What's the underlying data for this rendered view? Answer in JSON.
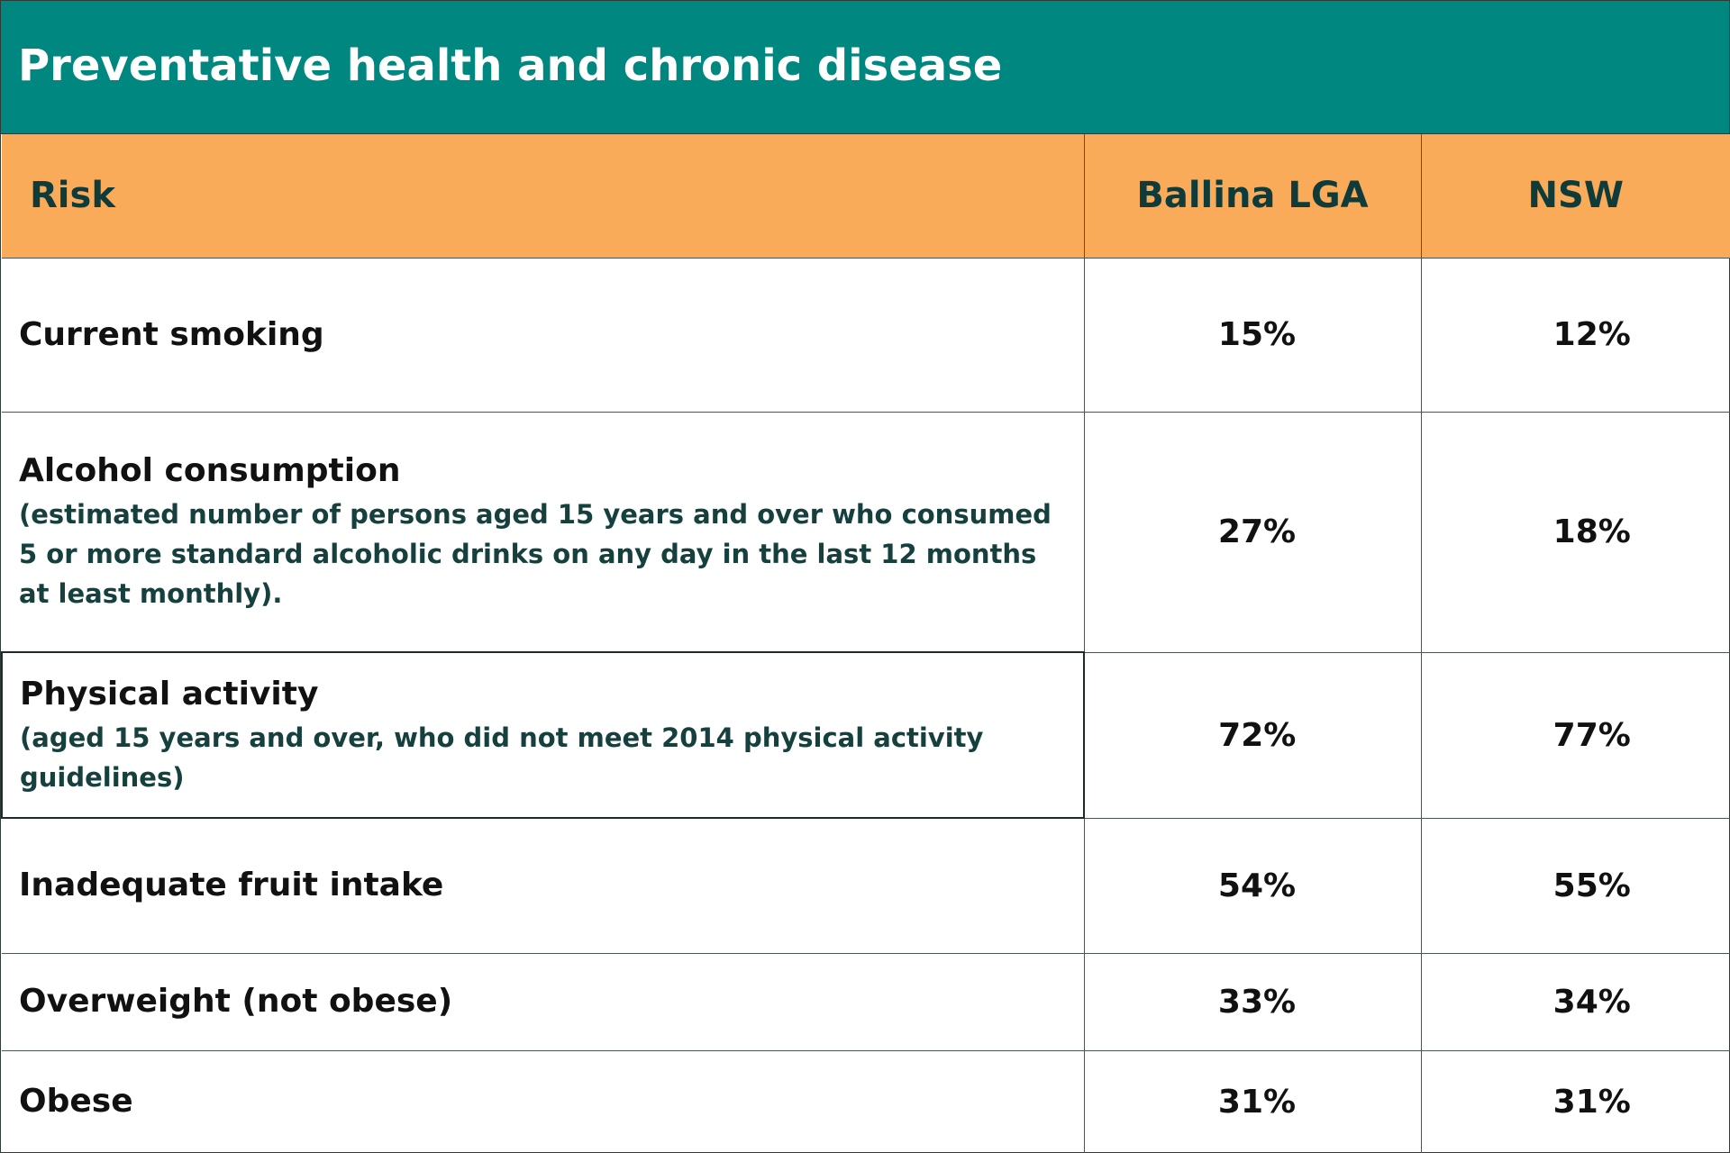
{
  "title": "Preventative health and chronic disease",
  "table": {
    "headers": {
      "risk": "Risk",
      "ballina": "Ballina LGA",
      "nsw": "NSW"
    },
    "rows": [
      {
        "risk": "Current smoking",
        "note": "",
        "ballina": "15%",
        "nsw": "12%"
      },
      {
        "risk": "Alcohol consumption",
        "note": "(estimated number of persons aged 15 years and over who consumed 5 or more standard alcoholic drinks on any day in the last 12 months at least monthly).",
        "ballina": "27%",
        "nsw": "18%"
      },
      {
        "risk": "Physical activity",
        "note": "(aged 15 years and over, who did not meet 2014 physical activity guidelines)",
        "ballina": "72%",
        "nsw": "77%"
      },
      {
        "risk": "Inadequate fruit intake",
        "note": "",
        "ballina": "54%",
        "nsw": "55%"
      },
      {
        "risk": "Overweight (not obese)",
        "note": "",
        "ballina": "33%",
        "nsw": "34%"
      },
      {
        "risk": "Obese",
        "note": "",
        "ballina": "31%",
        "nsw": "31%"
      }
    ]
  },
  "colors": {
    "title_bg": "#00877f",
    "header_bg": "#f9ab59",
    "note_text": "#15403e"
  }
}
